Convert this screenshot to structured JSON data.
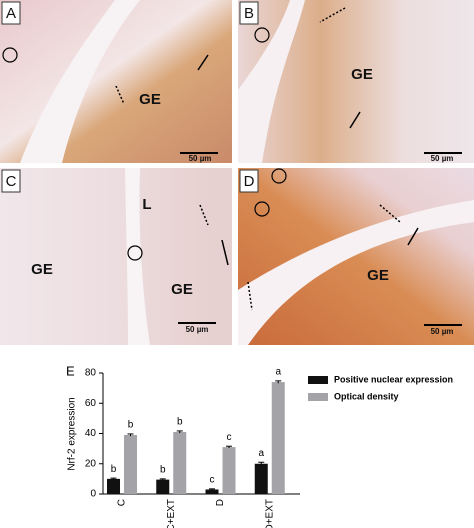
{
  "panels": [
    {
      "label": "A",
      "texts": [
        "GE"
      ],
      "scale": "50 µm"
    },
    {
      "label": "B",
      "texts": [
        "GE"
      ],
      "scale": "50 µm"
    },
    {
      "label": "C",
      "texts": [
        "GE",
        "GE",
        "L"
      ],
      "scale": "50 µm"
    },
    {
      "label": "D",
      "texts": [
        "GE"
      ],
      "scale": "50 µm"
    }
  ],
  "chart_data": {
    "type": "bar",
    "panel_label": "E",
    "y_label": "Nrf-2 expression",
    "categories": [
      "C",
      "C+EXT",
      "D",
      "D+EXT"
    ],
    "series": [
      {
        "name": "Positive nuclear expression",
        "color": "#111111",
        "values": [
          10,
          9.5,
          3,
          20
        ],
        "errors": [
          0.5,
          0.5,
          0.4,
          1
        ],
        "letters": [
          "b",
          "b",
          "c",
          "a"
        ]
      },
      {
        "name": "Optical density",
        "color": "#a3a3a8",
        "values": [
          39,
          41,
          31,
          74
        ],
        "errors": [
          0.7,
          0.7,
          0.6,
          0.8
        ],
        "letters": [
          "b",
          "b",
          "c",
          "a"
        ]
      }
    ],
    "ylim": [
      0,
      80
    ],
    "yticks": [
      0,
      20,
      40,
      60,
      80
    ]
  }
}
